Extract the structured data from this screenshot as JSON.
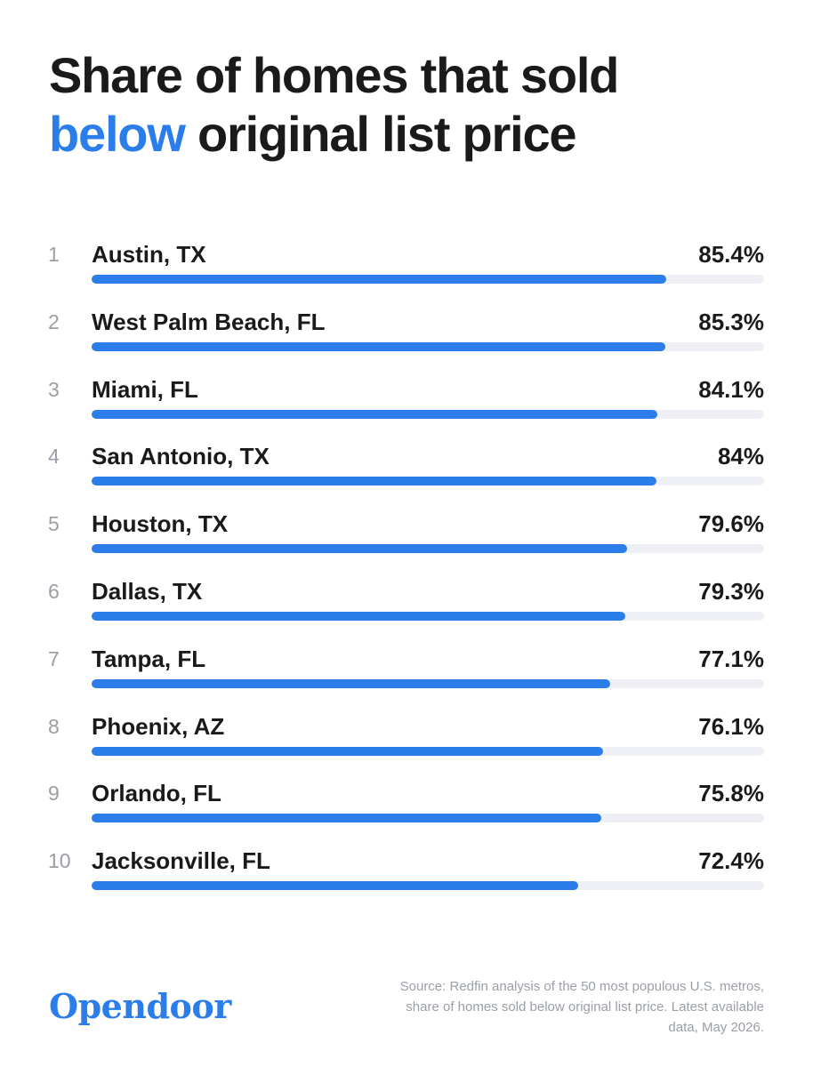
{
  "title": {
    "line1": "Share of homes that sold",
    "highlight": "below",
    "line2_rest": " original list price"
  },
  "chart_data": {
    "type": "bar",
    "orientation": "horizontal",
    "title": "Share of homes that sold below original list price",
    "ranks": [
      "1",
      "2",
      "3",
      "4",
      "5",
      "6",
      "7",
      "8",
      "9",
      "10"
    ],
    "categories": [
      "Austin, TX",
      "West Palm Beach, FL",
      "Miami, FL",
      "San Antonio, TX",
      "Houston, TX",
      "Dallas, TX",
      "Tampa, FL",
      "Phoenix, AZ",
      "Orlando, FL",
      "Jacksonville, FL"
    ],
    "values": [
      85.4,
      85.3,
      84.1,
      84,
      79.6,
      79.3,
      77.1,
      76.1,
      75.8,
      72.4
    ],
    "value_labels": [
      "85.4%",
      "85.3%",
      "84.1%",
      "84%",
      "79.6%",
      "79.3%",
      "77.1%",
      "76.1%",
      "75.8%",
      "72.4%"
    ],
    "xlim": [
      0,
      100
    ],
    "grid": false,
    "colors": {
      "bar": "#2b7de9",
      "track": "#eef0f5"
    }
  },
  "logo": "Opendoor",
  "source": "Source: Redfin analysis of the 50 most populous U.S. metros, share of homes sold below original list price. Latest available data, May 2026.",
  "colors": {
    "accent": "#2b7de9",
    "text": "#1a1a1a",
    "muted": "#9a9fa6"
  }
}
